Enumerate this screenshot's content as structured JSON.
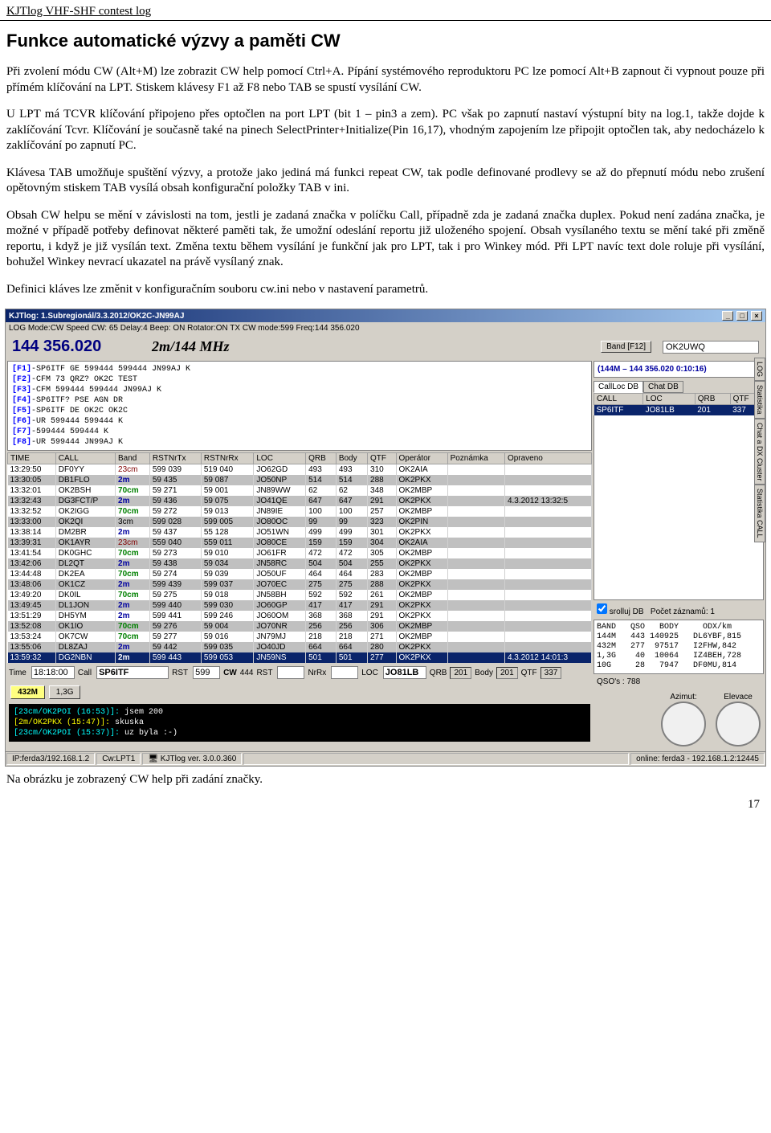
{
  "page": {
    "header": "KJTlog VHF-SHF contest log",
    "title": "Funkce automatické výzvy a paměti CW",
    "p1": "Při zvolení módu CW (Alt+M) lze zobrazit CW help pomocí Ctrl+A. Pípání systémového reproduktoru PC lze pomocí Alt+B zapnout či vypnout pouze při přímém klíčování na LPT. Stiskem klávesy F1 až F8 nebo TAB se spustí vysílání CW.",
    "p2": "U LPT má TCVR klíčování připojeno přes optočlen na port LPT (bit 1 – pin3 a zem). PC však po zapnutí nastaví výstupní bity na log.1, takže dojde k zaklíčování Tcvr. Klíčování je současně také na pinech SelectPrinter+Initialize(Pin 16,17), vhodným zapojením lze připojit optočlen tak, aby nedocházelo k zaklíčování po zapnutí PC.",
    "p3": "Klávesa TAB umožňuje spuštění výzvy, a protože jako jediná má funkci repeat CW, tak podle definované prodlevy se až do přepnutí módu nebo zrušení opětovným stiskem TAB vysílá obsah konfigurační položky TAB v ini.",
    "p4": "Obsah CW helpu se mění v závislosti na tom, jestli je zadaná značka v políčku Call, případně zda je zadaná značka duplex. Pokud není zadána značka, je možné v případě potřeby definovat některé paměti tak, že umožní odeslání reportu již uloženého spojení. Obsah vysílaného textu se mění také při změně reportu, i když je již vysílán text. Změna textu během vysílání je funkční jak pro LPT, tak i pro Winkey mód. Při LPT navíc text dole roluje při vysílání, bohužel Winkey nevrací ukazatel na právě vysílaný znak.",
    "p5": "Definici kláves lze změnit v konfiguračním souboru cw.ini nebo v nastavení parametrů.",
    "caption": "Na obrázku je zobrazený CW help při zadání značky.",
    "pagenum": "17"
  },
  "app": {
    "title": "KJTlog: 1.Subregionál/3.3.2012/OK2C-JN99AJ",
    "menu": "LOG   Mode:CW   Speed CW: 65   Delay:4   Beep: ON   Rotator:ON   TX CW mode:599   Freq:144 356.020",
    "freq": "144 356.020",
    "band_label": "2m/144 MHz",
    "band_btn": "Band [F12]",
    "call_input": "OK2UWQ",
    "fkeys": [
      {
        "t": "[F1]",
        "r": "-SP6ITF GE 599444 599444 JN99AJ K"
      },
      {
        "t": "[F2]",
        "r": "-CFM 73 QRZ? OK2C TEST"
      },
      {
        "t": "[F3]",
        "r": "-CFM 599444 599444 JN99AJ K"
      },
      {
        "t": "[F4]",
        "r": "-SP6ITF? PSE AGN DR"
      },
      {
        "t": "[F5]",
        "r": "-SP6ITF DE OK2C OK2C"
      },
      {
        "t": "[F6]",
        "r": "-UR 599444 599444 K"
      },
      {
        "t": "[F7]",
        "r": "-599444 599444 K"
      },
      {
        "t": "[F8]",
        "r": "-UR 599444 JN99AJ K"
      }
    ],
    "log_cols": [
      "TIME",
      "CALL",
      "Band",
      "RSTNrTx",
      "RSTNrRx",
      "LOC",
      "QRB",
      "Body",
      "QTF",
      "Operátor",
      "Poznámka",
      "Opraveno"
    ],
    "log_rows": [
      [
        "13:29:50",
        "DF0YY",
        "23cm",
        "599 039",
        "519   040",
        "JO62GD",
        "493",
        "493",
        "310",
        "OK2AIA",
        "",
        ""
      ],
      [
        "13:30:05",
        "DB1FLO",
        "2m",
        "59  435",
        "59    087",
        "JO50NP",
        "514",
        "514",
        "288",
        "OK2PKX",
        "",
        ""
      ],
      [
        "13:32:01",
        "OK2BSH",
        "70cm",
        "59  271",
        "59    001",
        "JN89WW",
        "62",
        "62",
        "348",
        "OK2MBP",
        "",
        ""
      ],
      [
        "13:32:43",
        "DG3FCT/P",
        "2m",
        "59  436",
        "59    075",
        "JO41QE",
        "647",
        "647",
        "291",
        "OK2PKX",
        "",
        "4.3.2012 13:32:5"
      ],
      [
        "13:32:52",
        "OK2IGG",
        "70cm",
        "59  272",
        "59    013",
        "JN89IE",
        "100",
        "100",
        "257",
        "OK2MBP",
        "",
        ""
      ],
      [
        "13:33:00",
        "OK2QI",
        "3cm",
        "599 028",
        "599   005",
        "JO80OC",
        "99",
        "99",
        "323",
        "OK2PIN",
        "",
        ""
      ],
      [
        "13:38:14",
        "DM2BR",
        "2m",
        "59  437",
        "55    128",
        "JO51WN",
        "499",
        "499",
        "301",
        "OK2PKX",
        "",
        ""
      ],
      [
        "13:39:31",
        "OK1AYR",
        "23cm",
        "559 040",
        "559   011",
        "JO80CE",
        "159",
        "159",
        "304",
        "OK2AIA",
        "",
        ""
      ],
      [
        "13:41:54",
        "DK0GHC",
        "70cm",
        "59  273",
        "59    010",
        "JO61FR",
        "472",
        "472",
        "305",
        "OK2MBP",
        "",
        ""
      ],
      [
        "13:42:06",
        "DL2QT",
        "2m",
        "59  438",
        "59    034",
        "JN58RC",
        "504",
        "504",
        "255",
        "OK2PKX",
        "",
        ""
      ],
      [
        "13:44:48",
        "DK2EA",
        "70cm",
        "59  274",
        "59    039",
        "JO50UF",
        "464",
        "464",
        "283",
        "OK2MBP",
        "",
        ""
      ],
      [
        "13:48:06",
        "OK1CZ",
        "2m",
        "599 439",
        "599   037",
        "JO70EC",
        "275",
        "275",
        "288",
        "OK2PKX",
        "",
        ""
      ],
      [
        "13:49:20",
        "DK0IL",
        "70cm",
        "59  275",
        "59    018",
        "JN58BH",
        "592",
        "592",
        "261",
        "OK2MBP",
        "",
        ""
      ],
      [
        "13:49:45",
        "DL1JON",
        "2m",
        "599 440",
        "599   030",
        "JO60GP",
        "417",
        "417",
        "291",
        "OK2PKX",
        "",
        ""
      ],
      [
        "13:51:29",
        "DH5YM",
        "2m",
        "599 441",
        "599   246",
        "JO60OM",
        "368",
        "368",
        "291",
        "OK2PKX",
        "",
        ""
      ],
      [
        "13:52:08",
        "OK1IO",
        "70cm",
        "59  276",
        "59    004",
        "JO70NR",
        "256",
        "256",
        "306",
        "OK2MBP",
        "",
        ""
      ],
      [
        "13:53:24",
        "OK7CW",
        "70cm",
        "59  277",
        "59    016",
        "JN79MJ",
        "218",
        "218",
        "271",
        "OK2MBP",
        "",
        ""
      ],
      [
        "13:55:06",
        "DL8ZAJ",
        "2m",
        "59  442",
        "599   035",
        "JO40JD",
        "664",
        "664",
        "280",
        "OK2PKX",
        "",
        ""
      ],
      [
        "13:59:32",
        "DG2NBN",
        "2m",
        "599 443",
        "599   053",
        "JN59NS",
        "501",
        "501",
        "277",
        "OK2PKX",
        "",
        "4.3.2012 14:01:3"
      ]
    ],
    "input_row": {
      "time_lbl": "Time",
      "time": "18:18:00",
      "call_lbl": "Call",
      "call": "SP6ITF",
      "rst_lbl": "RST",
      "rst": "599",
      "cw": "CW",
      "cw_v": "444",
      "rst2": "RST",
      "nrrx": "NrRx",
      "loc_lbl": "LOC",
      "loc": "JO81LB",
      "qrb": "QRB",
      "qrb_v": "201",
      "body": "Body",
      "body_v": "201",
      "qtf": "QTF",
      "qtf_v": "337"
    },
    "band_buttons": [
      "432M",
      "1,3G"
    ],
    "terminal": [
      {
        "p": "[23cm/OK2POI (16:53)]:",
        "m": " jsem 200",
        "c": "ct"
      },
      {
        "p": "[2m/OK2PKX (15:47)]:",
        "m": " skuska",
        "c": "ye"
      },
      {
        "p": "[23cm/OK2POI (15:37)]:",
        "m": " uz byla :-)",
        "c": "ct"
      }
    ],
    "statusbar": [
      "IP:ferda3/192.168.1.2",
      "Cw:LPT1",
      "KJTlog ver. 3.0.0.360",
      "",
      "online: ferda3 - 192.168.1.2:12445"
    ],
    "side_header": "(144M – 144 356.020 0:10:16)",
    "side_tabs": [
      "CallLoc DB",
      "Chat DB"
    ],
    "side_cols": [
      "CALL",
      "LOC",
      "QRB",
      "QTF"
    ],
    "side_row": [
      "SP6ITF",
      "JO81LB",
      "201",
      "337"
    ],
    "scroll_db": "srolluj DB",
    "records": "Počet záznamů: 1",
    "stats": "BAND   QSO   BODY     ODX/km\n144M   443 140925   DL6YBF,815\n432M   277  97517   I2FHW,842\n1,3G    40  10064   IZ4BEH,728\n10G     28   7947   DF0MU,814",
    "qsos": "QSO's : 788",
    "rotator": {
      "az": "Azimut:",
      "el": "Elevace"
    },
    "vtabs": [
      "LOG",
      "Statistika",
      "Chat a DX Cluster",
      "Statistika CALL"
    ]
  }
}
